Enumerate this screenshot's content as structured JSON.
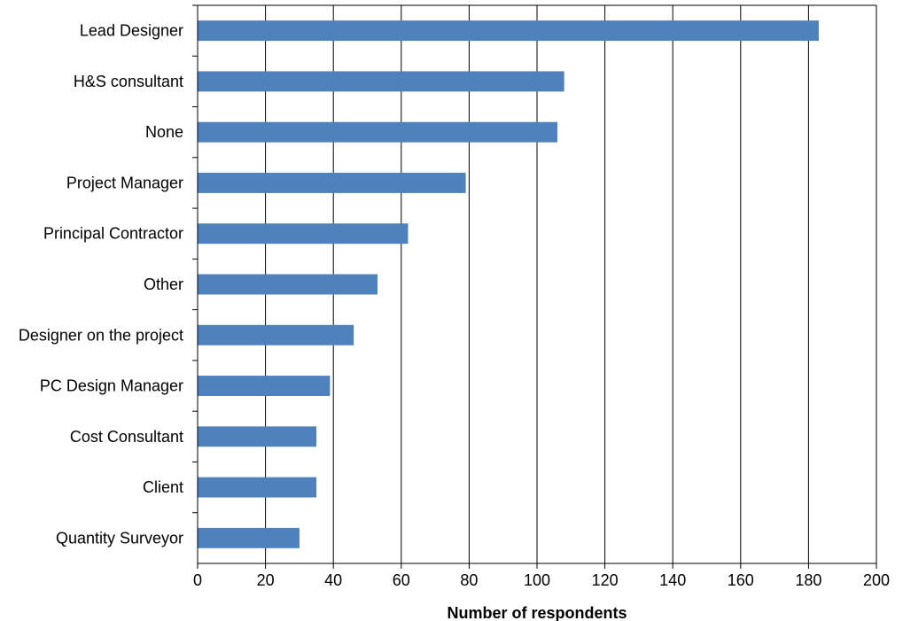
{
  "chart_data": {
    "type": "bar",
    "orientation": "horizontal",
    "categories": [
      "Lead Designer",
      "H&S consultant",
      "None",
      "Project Manager",
      "Principal Contractor",
      "Other",
      "Designer on the project",
      "PC Design Manager",
      "Cost Consultant",
      "Client",
      "Quantity Surveyor"
    ],
    "values": [
      183,
      108,
      106,
      79,
      62,
      53,
      46,
      39,
      35,
      35,
      30
    ],
    "xlabel": "Number of respondents",
    "ylabel": "",
    "xlim": [
      0,
      200
    ],
    "xticks": [
      0,
      20,
      40,
      60,
      80,
      100,
      120,
      140,
      160,
      180,
      200
    ],
    "grid": "vertical",
    "legend": "none",
    "bar_color": "#4f81bd"
  }
}
